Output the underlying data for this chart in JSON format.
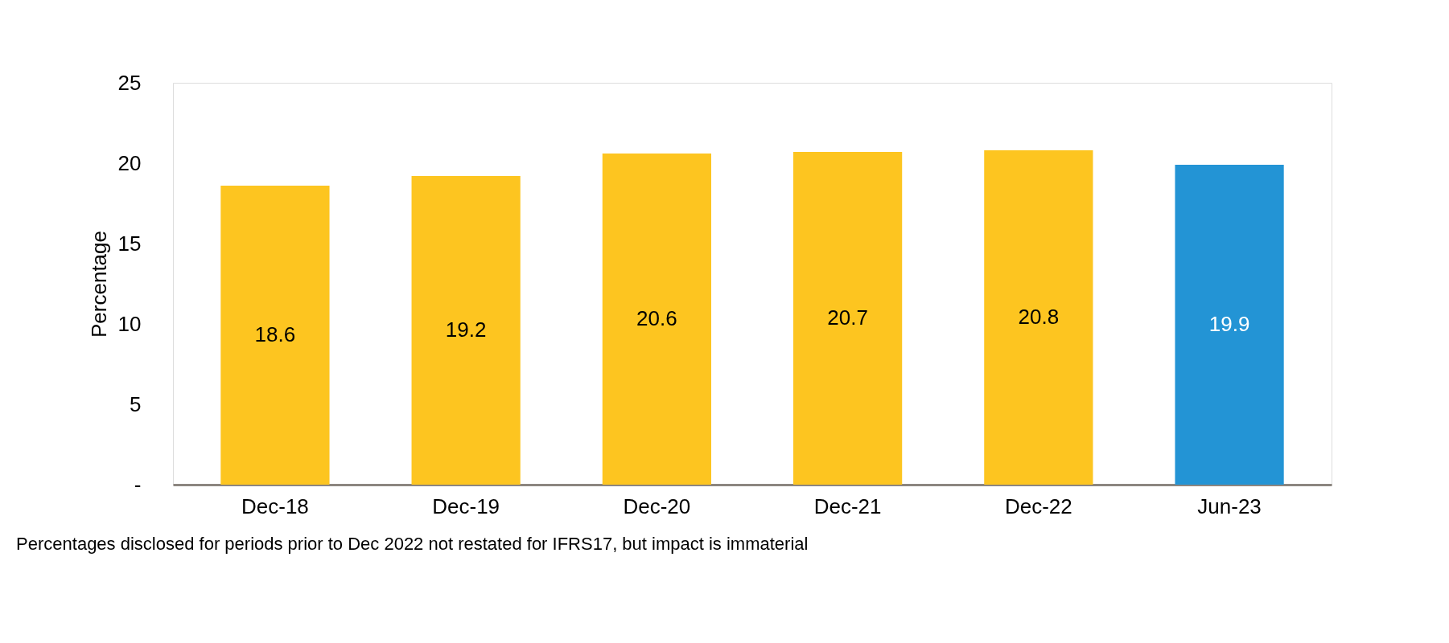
{
  "chart_data": {
    "type": "bar",
    "ylabel": "Percentage",
    "categories": [
      "Dec-18",
      "Dec-19",
      "Dec-20",
      "Dec-21",
      "Dec-22",
      "Jun-23"
    ],
    "values": [
      18.6,
      19.2,
      20.6,
      20.7,
      20.8,
      19.9
    ],
    "colors": [
      "#fdc520",
      "#fdc520",
      "#fdc520",
      "#fdc520",
      "#fdc520",
      "#2394d5"
    ],
    "ylim": [
      0,
      25
    ],
    "yticks": [
      {
        "value": 0,
        "label": "-"
      },
      5,
      10,
      15,
      20,
      25
    ],
    "data_labels": true,
    "grid": false,
    "annotations": [
      "Percentages disclosed for periods prior to Dec 2022 not restated for IFRS17, but impact is immaterial"
    ]
  }
}
